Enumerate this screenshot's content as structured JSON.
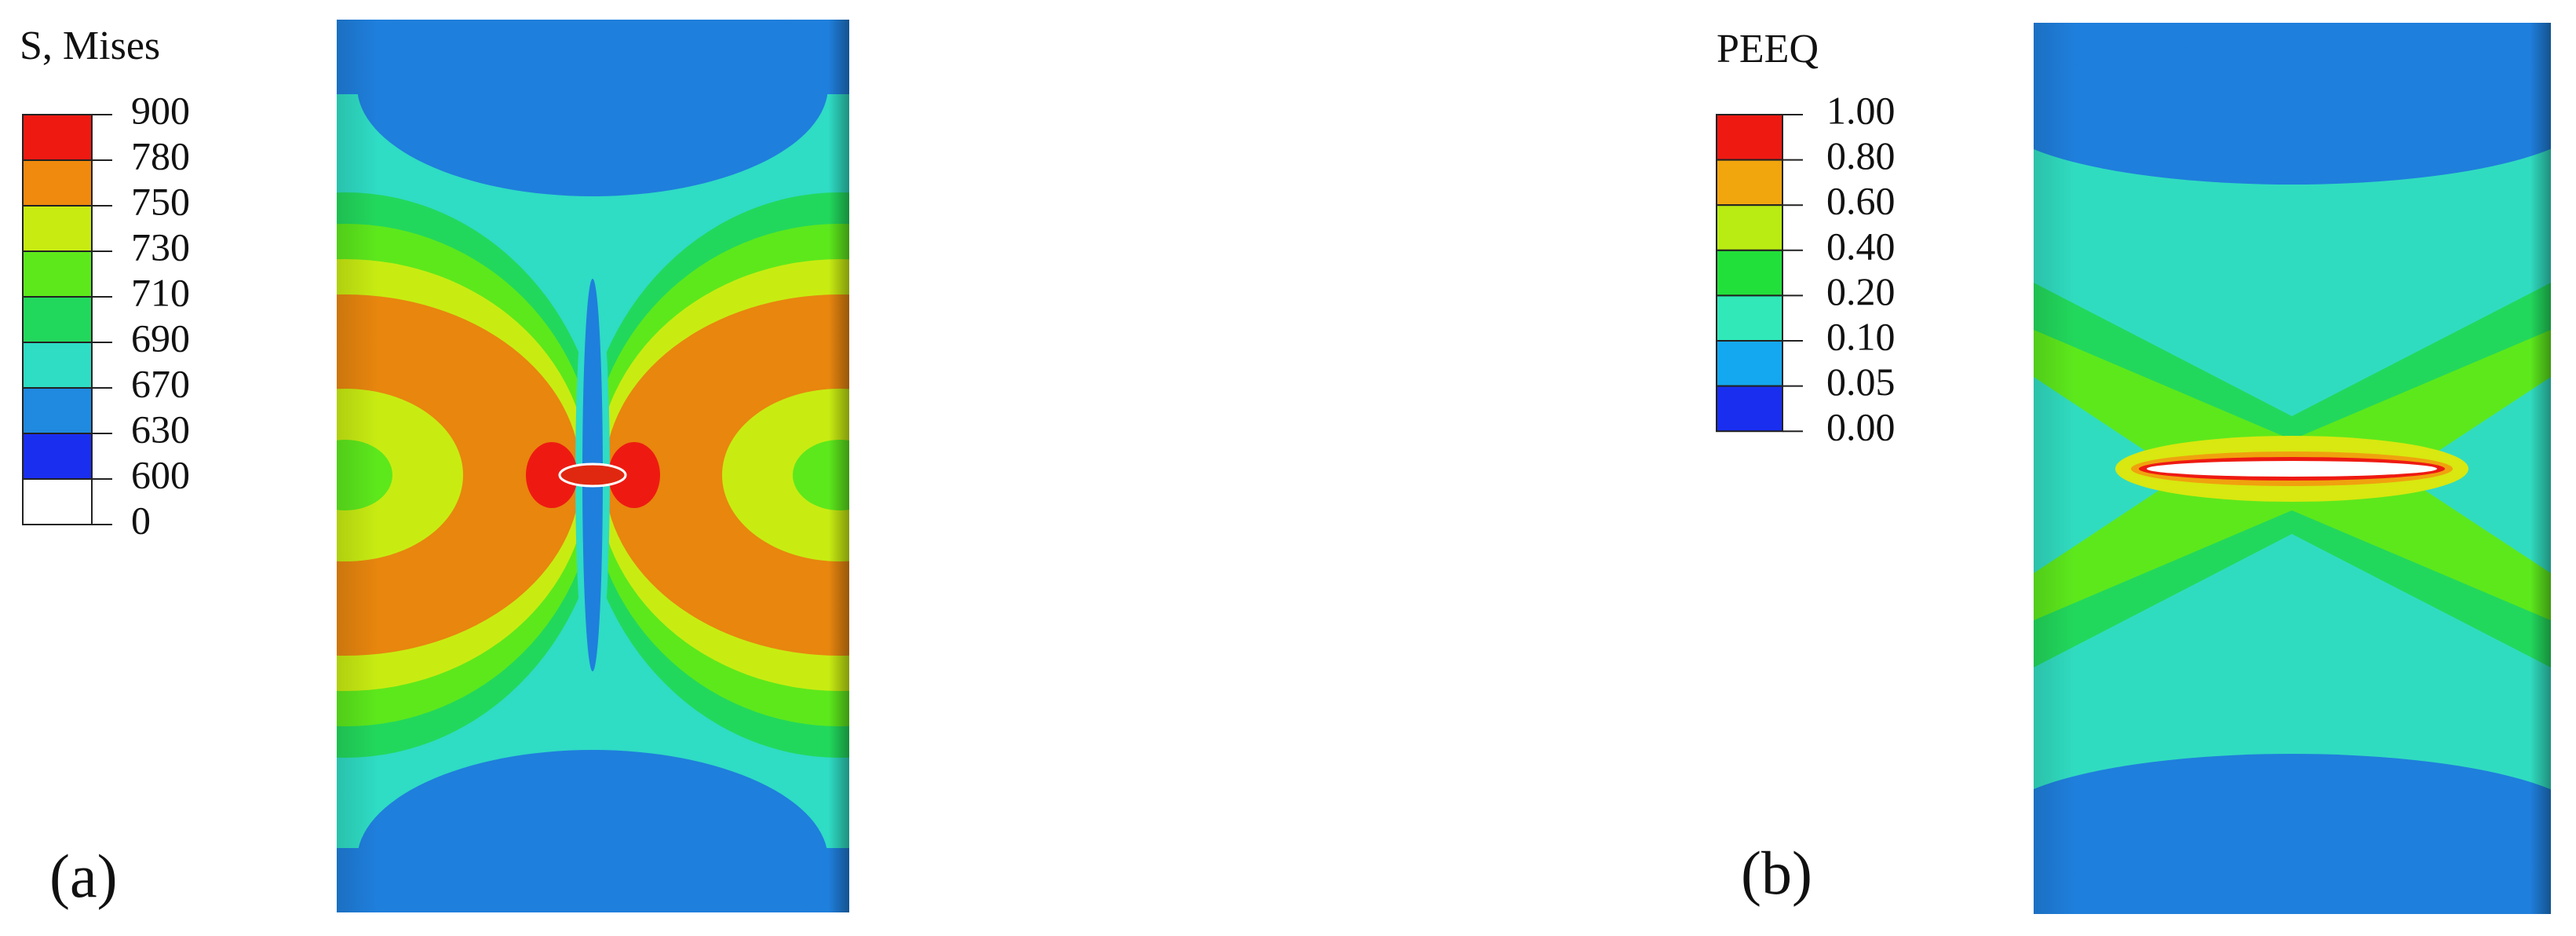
{
  "panels": [
    {
      "label": "(a)",
      "legend": {
        "title": "S, Mises",
        "levels": [
          "900",
          "780",
          "750",
          "730",
          "710",
          "690",
          "670",
          "630",
          "600",
          "0"
        ]
      }
    },
    {
      "label": "(b)",
      "legend": {
        "title": "PEEQ",
        "levels": [
          "1.00",
          "0.80",
          "0.60",
          "0.40",
          "0.20",
          "0.10",
          "0.05",
          "0.00"
        ]
      }
    }
  ]
}
